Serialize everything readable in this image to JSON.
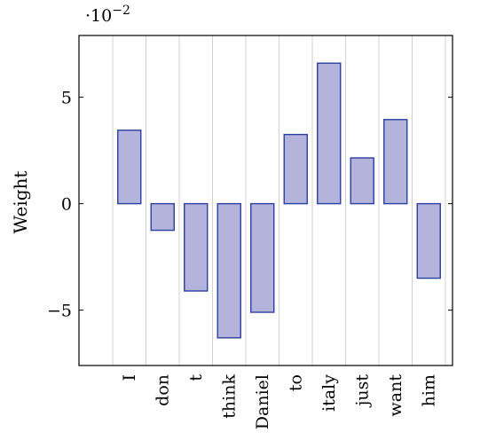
{
  "chart_data": {
    "type": "bar",
    "ylabel": "Weight",
    "xlabel": "",
    "y_multiplier_base": "·10",
    "y_multiplier_exp": "−2",
    "categories": [
      "I",
      "don",
      "t",
      "think",
      "Daniel",
      "to",
      "italy",
      "just",
      "want",
      "him"
    ],
    "values": [
      3.45,
      -1.25,
      -4.1,
      -6.3,
      -5.1,
      3.25,
      6.6,
      2.15,
      3.95,
      -3.5
    ],
    "yticks": [
      -5,
      0,
      5
    ],
    "ytick_labels": [
      "−5",
      "0",
      "5"
    ],
    "ylim": [
      -7.6,
      7.9
    ],
    "grid": "vertical",
    "colors": {
      "bar_fill": "#b3b3db",
      "bar_stroke": "#2c3e9e"
    }
  }
}
